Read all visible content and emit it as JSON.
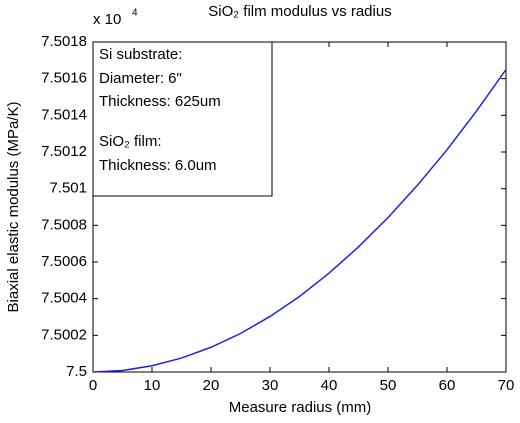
{
  "chart_data": {
    "type": "line",
    "title": "SiO₂ film modulus vs radius",
    "x_label": "Measure radius (mm)",
    "y_label": "Biaxial elastic modulus (MPa/K)",
    "y_multiplier": {
      "base": "x 10",
      "exponent": "4"
    },
    "annotation": [
      "Si substrate:",
      "Diameter: 6\"",
      "Thickness: 625um",
      "SiO₂ film:",
      "Thickness: 6.0um"
    ],
    "x": [
      0,
      5,
      10,
      15,
      20,
      25,
      30,
      35,
      40,
      45,
      50,
      55,
      60,
      65,
      70
    ],
    "series": [
      {
        "name": "modulus",
        "color": "#2222dd",
        "values": [
          7.5,
          7.500008,
          7.500034,
          7.500076,
          7.500135,
          7.50021,
          7.500303,
          7.500412,
          7.500539,
          7.500682,
          7.500842,
          7.501019,
          7.501212,
          7.501423,
          7.50165
        ]
      }
    ],
    "xlim": [
      0,
      70
    ],
    "xticks": [
      0,
      10,
      20,
      30,
      40,
      50,
      60,
      70
    ],
    "ylim": [
      7.5,
      7.5018
    ],
    "yticks": [
      7.5,
      7.5002,
      7.5004,
      7.5006,
      7.5008,
      7.501,
      7.5012,
      7.5014,
      7.5016,
      7.5018
    ],
    "grid": false
  }
}
